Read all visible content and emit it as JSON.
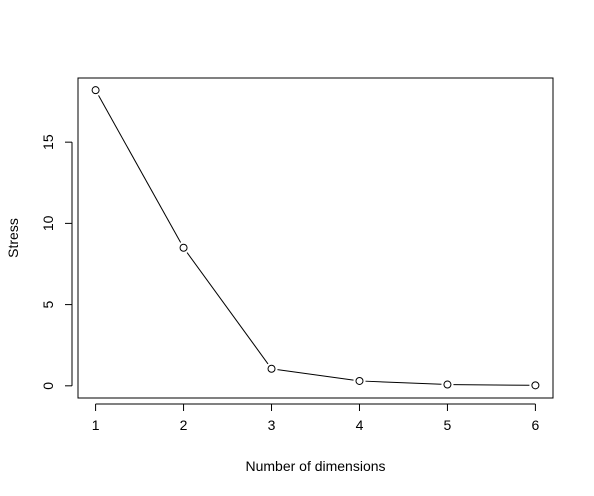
{
  "chart_data": {
    "type": "line",
    "title": "",
    "xlabel": "Number of dimensions",
    "ylabel": "Stress",
    "x": [
      1,
      2,
      3,
      4,
      5,
      6
    ],
    "series": [
      {
        "values": [
          18.2,
          8.5,
          1.05,
          0.3,
          0.08,
          0.03
        ]
      }
    ],
    "xlim": [
      0.8,
      6.2
    ],
    "ylim": [
      -0.75,
      18.95
    ],
    "x_ticks": [
      1,
      2,
      3,
      4,
      5,
      6
    ],
    "y_ticks": [
      0,
      5,
      10,
      15
    ],
    "grid": false,
    "legend": "none",
    "markers": "open-circle",
    "colors": {
      "line": "#000000",
      "marker_stroke": "#000000",
      "marker_fill": "#ffffff",
      "axes": "#000000",
      "background": "#ffffff"
    }
  }
}
